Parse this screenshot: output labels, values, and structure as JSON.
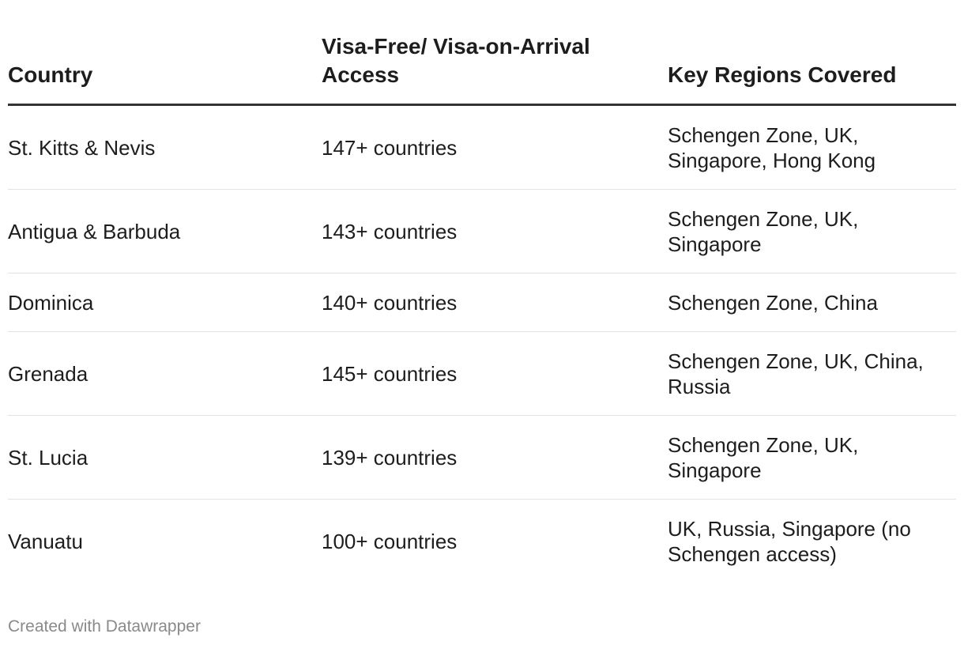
{
  "table": {
    "headers": {
      "country": "Country",
      "access": "Visa-Free/ Visa-on-Arrival Access",
      "regions": "Key Regions Covered"
    },
    "rows": [
      {
        "country": "St. Kitts & Nevis",
        "access": "147+ countries",
        "regions": "Schengen Zone, UK, Singapore, Hong Kong"
      },
      {
        "country": "Antigua & Barbuda",
        "access": "143+ countries",
        "regions": "Schengen Zone, UK, Singapore"
      },
      {
        "country": "Dominica",
        "access": "140+ countries",
        "regions": "Schengen Zone, China"
      },
      {
        "country": "Grenada",
        "access": "145+ countries",
        "regions": "Schengen Zone, UK, China, Russia"
      },
      {
        "country": "St. Lucia",
        "access": "139+ countries",
        "regions": "Schengen Zone, UK, Singapore"
      },
      {
        "country": "Vanuatu",
        "access": "100+ countries",
        "regions": "UK, Russia, Singapore (no Schengen access)"
      }
    ]
  },
  "footer": {
    "credit": "Created with Datawrapper"
  }
}
